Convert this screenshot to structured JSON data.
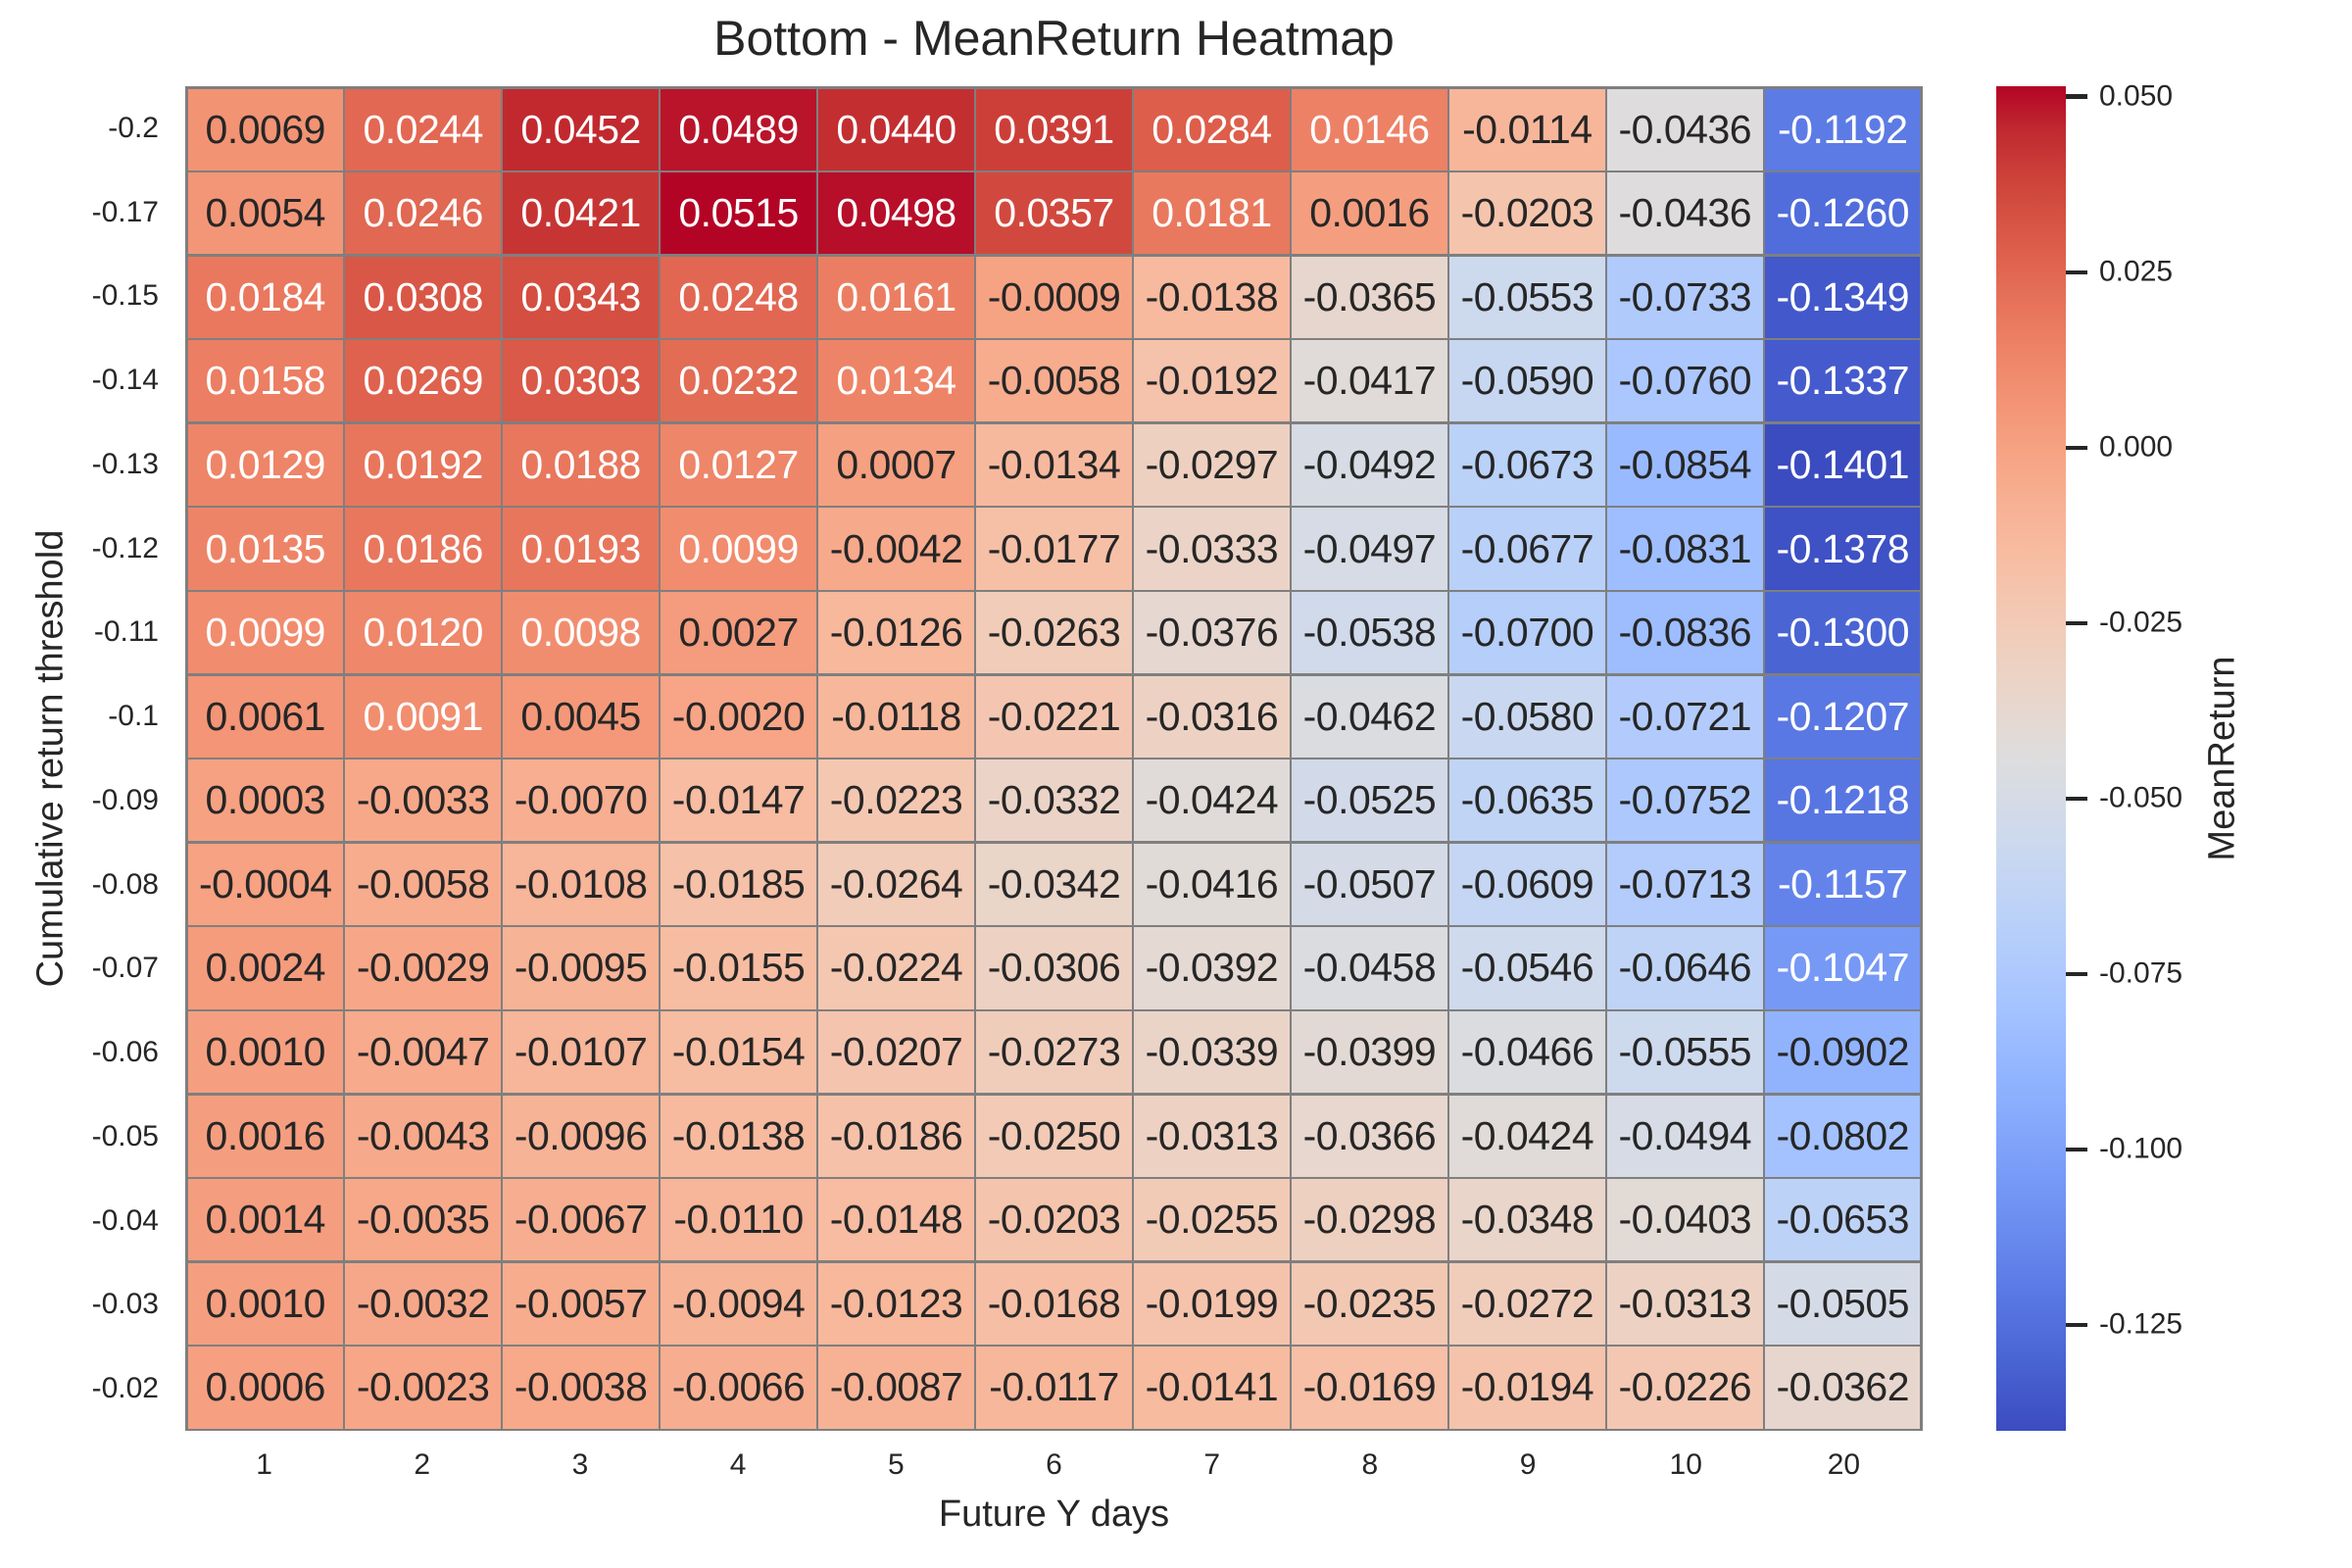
{
  "title": "Bottom - MeanReturn Heatmap",
  "chart_data": {
    "type": "heatmap",
    "title": "Bottom - MeanReturn Heatmap",
    "xlabel": "Future Y days",
    "ylabel": "Cumulative return threshold",
    "x_categories": [
      "1",
      "2",
      "3",
      "4",
      "5",
      "6",
      "7",
      "8",
      "9",
      "10",
      "20"
    ],
    "y_categories": [
      "-0.2",
      "-0.17",
      "-0.15",
      "-0.14",
      "-0.13",
      "-0.12",
      "-0.11",
      "-0.1",
      "-0.09",
      "-0.08",
      "-0.07",
      "-0.06",
      "-0.05",
      "-0.04",
      "-0.03",
      "-0.02"
    ],
    "values": [
      [
        0.0069,
        0.0244,
        0.0452,
        0.0489,
        0.044,
        0.0391,
        0.0284,
        0.0146,
        -0.0114,
        -0.0436,
        -0.1192
      ],
      [
        0.0054,
        0.0246,
        0.0421,
        0.0515,
        0.0498,
        0.0357,
        0.0181,
        0.0016,
        -0.0203,
        -0.0436,
        -0.126
      ],
      [
        0.0184,
        0.0308,
        0.0343,
        0.0248,
        0.0161,
        -0.0009,
        -0.0138,
        -0.0365,
        -0.0553,
        -0.0733,
        -0.1349
      ],
      [
        0.0158,
        0.0269,
        0.0303,
        0.0232,
        0.0134,
        -0.0058,
        -0.0192,
        -0.0417,
        -0.059,
        -0.076,
        -0.1337
      ],
      [
        0.0129,
        0.0192,
        0.0188,
        0.0127,
        0.0007,
        -0.0134,
        -0.0297,
        -0.0492,
        -0.0673,
        -0.0854,
        -0.1401
      ],
      [
        0.0135,
        0.0186,
        0.0193,
        0.0099,
        -0.0042,
        -0.0177,
        -0.0333,
        -0.0497,
        -0.0677,
        -0.0831,
        -0.1378
      ],
      [
        0.0099,
        0.012,
        0.0098,
        0.0027,
        -0.0126,
        -0.0263,
        -0.0376,
        -0.0538,
        -0.07,
        -0.0836,
        -0.13
      ],
      [
        0.0061,
        0.0091,
        0.0045,
        -0.002,
        -0.0118,
        -0.0221,
        -0.0316,
        -0.0462,
        -0.058,
        -0.0721,
        -0.1207
      ],
      [
        0.0003,
        -0.0033,
        -0.007,
        -0.0147,
        -0.0223,
        -0.0332,
        -0.0424,
        -0.0525,
        -0.0635,
        -0.0752,
        -0.1218
      ],
      [
        -0.0004,
        -0.0058,
        -0.0108,
        -0.0185,
        -0.0264,
        -0.0342,
        -0.0416,
        -0.0507,
        -0.0609,
        -0.0713,
        -0.1157
      ],
      [
        0.0024,
        -0.0029,
        -0.0095,
        -0.0155,
        -0.0224,
        -0.0306,
        -0.0392,
        -0.0458,
        -0.0546,
        -0.0646,
        -0.1047
      ],
      [
        0.001,
        -0.0047,
        -0.0107,
        -0.0154,
        -0.0207,
        -0.0273,
        -0.0339,
        -0.0399,
        -0.0466,
        -0.0555,
        -0.0902
      ],
      [
        0.0016,
        -0.0043,
        -0.0096,
        -0.0138,
        -0.0186,
        -0.025,
        -0.0313,
        -0.0366,
        -0.0424,
        -0.0494,
        -0.0802
      ],
      [
        0.0014,
        -0.0035,
        -0.0067,
        -0.011,
        -0.0148,
        -0.0203,
        -0.0255,
        -0.0298,
        -0.0348,
        -0.0403,
        -0.0653
      ],
      [
        0.001,
        -0.0032,
        -0.0057,
        -0.0094,
        -0.0123,
        -0.0168,
        -0.0199,
        -0.0235,
        -0.0272,
        -0.0313,
        -0.0505
      ],
      [
        0.0006,
        -0.0023,
        -0.0038,
        -0.0066,
        -0.0087,
        -0.0117,
        -0.0141,
        -0.0169,
        -0.0194,
        -0.0226,
        -0.0362
      ]
    ],
    "annotation_decimals": 4,
    "colorscale": {
      "name": "coolwarm",
      "vmin": -0.1401,
      "vmax": 0.0515,
      "stops": [
        "#3b4cc0",
        "#445acc",
        "#4d68d7",
        "#5775e1",
        "#6282ea",
        "#6c8ef1",
        "#779af7",
        "#82a5fb",
        "#8db0fe",
        "#98b9ff",
        "#a3c2ff",
        "#aec9fd",
        "#b8d0f9",
        "#c2d5f4",
        "#ccd9ee",
        "#d5dbe6",
        "#dddddd",
        "#e5d8d1",
        "#ecd3c5",
        "#f1ccb9",
        "#f5c4ad",
        "#f7bba0",
        "#f7b194",
        "#f7a687",
        "#f49a7b",
        "#f18d6f",
        "#ec7f63",
        "#e57058",
        "#de604d",
        "#d55042",
        "#cb3e38",
        "#c0282f",
        "#b40426"
      ]
    },
    "colorbar": {
      "label": "MeanReturn",
      "tick_labels": [
        "0.050",
        "0.025",
        "0.000",
        "-0.025",
        "-0.050",
        "-0.075",
        "-0.100",
        "-0.125"
      ],
      "tick_values": [
        0.05,
        0.025,
        0.0,
        -0.025,
        -0.05,
        -0.075,
        -0.1,
        -0.125
      ]
    },
    "grid_line_color": "#7f7f7f",
    "text_dark": "#262626",
    "text_light": "#ffffff",
    "luminance_threshold": 0.408,
    "grid_on": false,
    "legend_position": "right-colorbar",
    "background": "#ffffff"
  }
}
